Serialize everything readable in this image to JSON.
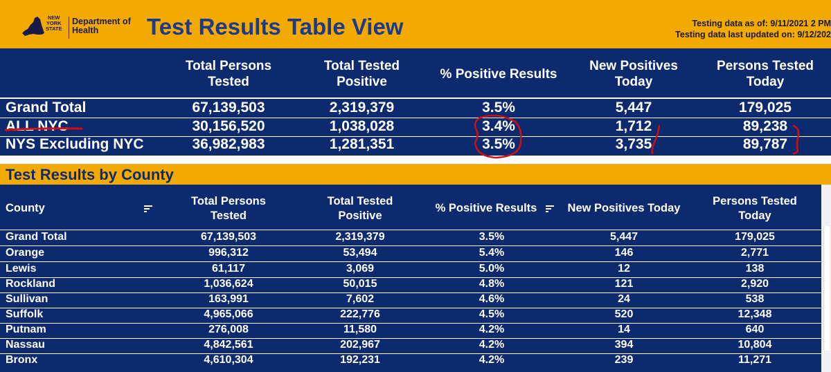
{
  "header": {
    "logo_small": [
      "NEW",
      "YORK",
      "STATE"
    ],
    "logo_dept_line1": "Department of",
    "logo_dept_line2": "Health",
    "title": "Test Results Table View",
    "as_of": "Testing data as of: 9/11/2021 2 PM",
    "last_updated": "Testing data last updated on: 9/12/202"
  },
  "summary": {
    "columns": [
      "Total Persons Tested",
      "Total Tested Positive",
      "% Positive Results",
      "New Positives Today",
      "Persons Tested Today"
    ],
    "rows": [
      {
        "label": "Grand Total",
        "values": [
          "67,139,503",
          "2,319,379",
          "3.5%",
          "5,447",
          "179,025"
        ]
      },
      {
        "label": "ALL NYC",
        "values": [
          "30,156,520",
          "1,038,028",
          "3.4%",
          "1,712",
          "89,238"
        ]
      },
      {
        "label": "NYS Excluding NYC",
        "values": [
          "36,982,983",
          "1,281,351",
          "3.5%",
          "3,735",
          "89,787"
        ]
      }
    ]
  },
  "county": {
    "section_title": "Test Results by County",
    "columns": [
      "County",
      "Total Persons Tested",
      "Total Tested Positive",
      "% Positive Results",
      "New Positives Today",
      "Persons Tested Today"
    ],
    "rows": [
      {
        "name": "Grand Total",
        "values": [
          "67,139,503",
          "2,319,379",
          "3.5%",
          "5,447",
          "179,025"
        ]
      },
      {
        "name": "Orange",
        "values": [
          "996,312",
          "53,494",
          "5.4%",
          "146",
          "2,771"
        ]
      },
      {
        "name": "Lewis",
        "values": [
          "61,117",
          "3,069",
          "5.0%",
          "12",
          "138"
        ]
      },
      {
        "name": "Rockland",
        "values": [
          "1,036,624",
          "50,015",
          "4.8%",
          "121",
          "2,920"
        ]
      },
      {
        "name": "Sullivan",
        "values": [
          "163,991",
          "7,602",
          "4.6%",
          "24",
          "538"
        ]
      },
      {
        "name": "Suffolk",
        "values": [
          "4,965,066",
          "222,776",
          "4.5%",
          "520",
          "12,348"
        ]
      },
      {
        "name": "Putnam",
        "values": [
          "276,008",
          "11,580",
          "4.2%",
          "14",
          "640"
        ]
      },
      {
        "name": "Nassau",
        "values": [
          "4,842,561",
          "202,967",
          "4.2%",
          "394",
          "10,804"
        ]
      },
      {
        "name": "Bronx",
        "values": [
          "4,610,304",
          "192,231",
          "4.2%",
          "239",
          "11,271"
        ]
      }
    ]
  },
  "colors": {
    "header_gold": "#F2A900",
    "table_navy": "#0D2A6E",
    "title_blue": "#1B3A8C",
    "annotation_red": "#D01010"
  }
}
